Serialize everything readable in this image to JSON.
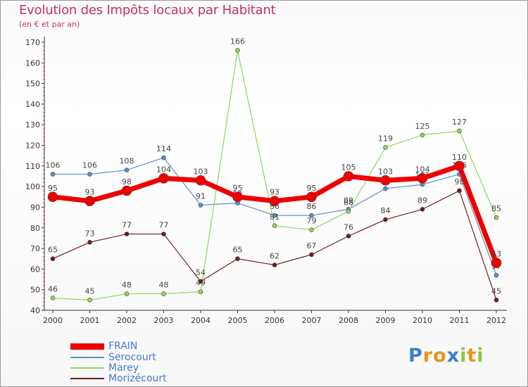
{
  "header": {
    "title": "Evolution des Impôts locaux par Habitant",
    "subtitle": "(en € et par an)"
  },
  "chart_data": {
    "type": "line",
    "title": "Evolution des Impôts locaux par Habitant",
    "subtitle": "(en € et par an)",
    "xlabel": "",
    "ylabel": "",
    "categories": [
      "2000",
      "2001",
      "2002",
      "2003",
      "2004",
      "2005",
      "2006",
      "2007",
      "2008",
      "2009",
      "2010",
      "2011",
      "2012"
    ],
    "ylim": [
      40,
      170
    ],
    "yticks": [
      40,
      50,
      60,
      70,
      80,
      90,
      100,
      110,
      120,
      130,
      140,
      150,
      160,
      170
    ],
    "grid": false,
    "legend_position": "bottom-left",
    "series": [
      {
        "name": "Serocourt",
        "color": "#5b8fc9",
        "values": [
          106,
          106,
          108,
          114,
          91,
          92,
          86,
          86,
          89,
          99,
          101,
          106,
          57
        ]
      },
      {
        "name": "Marey",
        "color": "#8ed65a",
        "values": [
          46,
          45,
          48,
          48,
          49,
          166,
          81,
          79,
          88,
          119,
          125,
          127,
          85
        ]
      },
      {
        "name": "Morizécourt",
        "color": "#6b1e1e",
        "values": [
          65,
          73,
          77,
          77,
          54,
          65,
          62,
          67,
          76,
          84,
          89,
          98,
          45
        ]
      },
      {
        "name": "FRAIN",
        "color": "#ee0000",
        "values": [
          95,
          93,
          98,
          104,
          103,
          95,
          93,
          95,
          105,
          103,
          104,
          110,
          63
        ]
      }
    ],
    "legend": [
      "FRAIN",
      "Serocourt",
      "Marey",
      "Morizécourt"
    ]
  },
  "brand": {
    "logo_letters": [
      "P",
      "r",
      "o",
      "x",
      "i",
      "t",
      "i"
    ],
    "logo_colors": [
      "#3a7fd0",
      "#e8941a",
      "#e8941a",
      "#3a7fd0",
      "#8cc63f",
      "#e8941a",
      "#8cc63f"
    ]
  }
}
